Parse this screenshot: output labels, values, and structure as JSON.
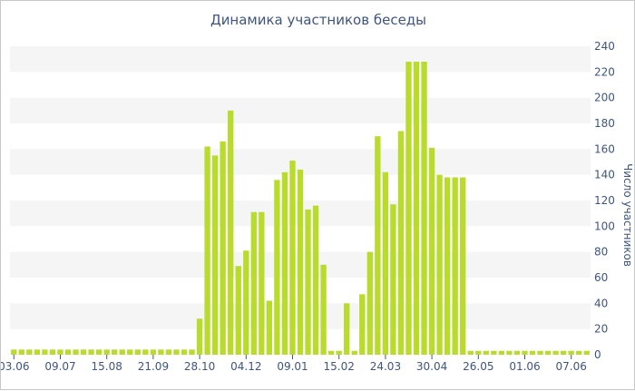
{
  "chart_data": {
    "type": "bar",
    "title": "Динамика участников беседы",
    "ylabel": "Число участников",
    "xlabel": "",
    "ylim": [
      0,
      240
    ],
    "y_ticks": [
      0,
      20,
      40,
      60,
      80,
      100,
      120,
      140,
      160,
      180,
      200,
      220,
      240
    ],
    "y_axis_position": "right",
    "grid": "alternating horizontal bands",
    "x_tick_labels": [
      "03.06",
      "09.07",
      "15.08",
      "21.09",
      "28.10",
      "04.12",
      "09.01",
      "15.02",
      "24.03",
      "30.04",
      "26.05",
      "01.06",
      "07.06"
    ],
    "x_tick_index": [
      0,
      6,
      12,
      18,
      24,
      30,
      36,
      42,
      48,
      54,
      60,
      66,
      72
    ],
    "bar_color": "#b8db2c",
    "band_color": "#f5f5f5",
    "text_color": "#3e5580",
    "values": [
      4,
      4,
      4,
      4,
      4,
      4,
      4,
      4,
      4,
      4,
      4,
      4,
      4,
      4,
      4,
      4,
      4,
      4,
      4,
      4,
      4,
      4,
      4,
      4,
      28,
      162,
      155,
      166,
      190,
      69,
      81,
      111,
      111,
      42,
      136,
      142,
      151,
      144,
      113,
      116,
      70,
      3,
      3,
      40,
      3,
      47,
      80,
      170,
      142,
      117,
      174,
      228,
      228,
      228,
      161,
      140,
      138,
      138,
      138,
      3,
      3,
      3,
      3,
      3,
      3,
      3,
      3,
      3,
      3,
      3,
      3,
      3,
      3,
      3,
      3
    ]
  }
}
